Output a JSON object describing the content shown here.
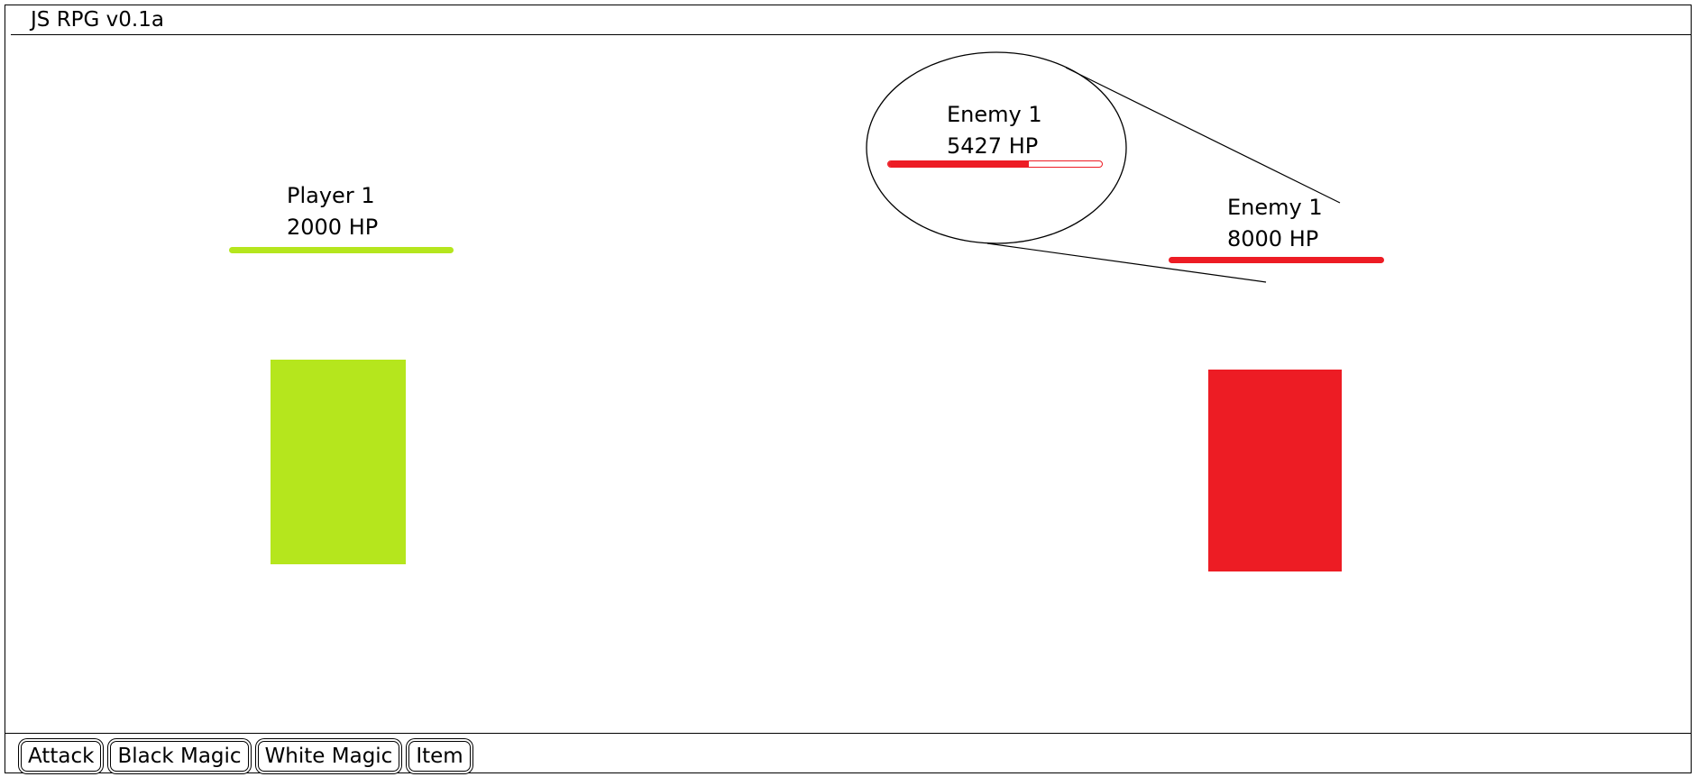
{
  "window": {
    "title": "JS RPG v0.1a"
  },
  "player": {
    "name": "Player 1",
    "hp_text": "2000 HP",
    "hp_fraction": 1.0,
    "color": "#b5e61d"
  },
  "enemy": {
    "name": "Enemy 1",
    "hp_text": "8000 HP",
    "hp_fraction": 1.0,
    "color": "#ed1c24"
  },
  "enemy_callout": {
    "name": "Enemy 1",
    "hp_text": "5427 HP",
    "hp_fraction": 0.66,
    "color": "#ed1c24"
  },
  "commands": [
    {
      "label": "Attack"
    },
    {
      "label": "Black Magic"
    },
    {
      "label": "White Magic"
    },
    {
      "label": "Item"
    }
  ]
}
